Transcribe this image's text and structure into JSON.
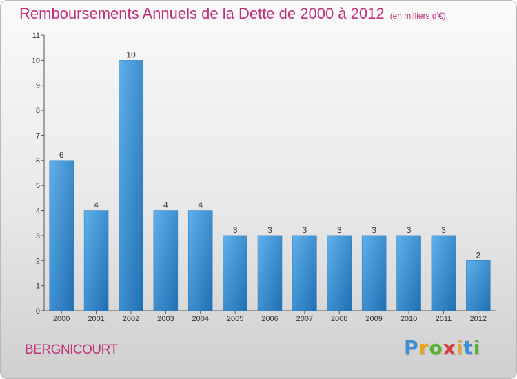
{
  "chart_data": {
    "type": "bar",
    "title": "Remboursements Annuels de la Dette de 2000 à 2012",
    "subtitle": "(en milliers d'€)",
    "xlabel": "",
    "ylabel": "",
    "categories": [
      "2000",
      "2001",
      "2002",
      "2003",
      "2004",
      "2005",
      "2006",
      "2007",
      "2008",
      "2009",
      "2010",
      "2011",
      "2012"
    ],
    "values": [
      6,
      4,
      10,
      4,
      4,
      3,
      3,
      3,
      3,
      3,
      3,
      3,
      2
    ],
    "data_labels": [
      "6",
      "4",
      "10",
      "4",
      "4",
      "3",
      "3",
      "3",
      "3",
      "3",
      "3",
      "3",
      "2"
    ],
    "ylim": [
      0,
      11
    ],
    "yticks": [
      "0",
      "1",
      "2",
      "3",
      "4",
      "5",
      "6",
      "7",
      "8",
      "9",
      "10",
      "11"
    ],
    "grid": false,
    "legend": "none",
    "bar_color": "#3a8fd8"
  },
  "footer": {
    "location": "BERGNICOURT",
    "brand_letters": [
      {
        "ch": "P",
        "color": "#3f8fd6"
      },
      {
        "ch": "r",
        "color": "#e9a21a"
      },
      {
        "ch": "o",
        "color": "#5bb131"
      },
      {
        "ch": "x",
        "color": "#d63f3f"
      },
      {
        "ch": "i",
        "color": "#e9a21a"
      },
      {
        "ch": "t",
        "color": "#3f8fd6"
      },
      {
        "ch": "i",
        "color": "#5bb131"
      }
    ]
  }
}
